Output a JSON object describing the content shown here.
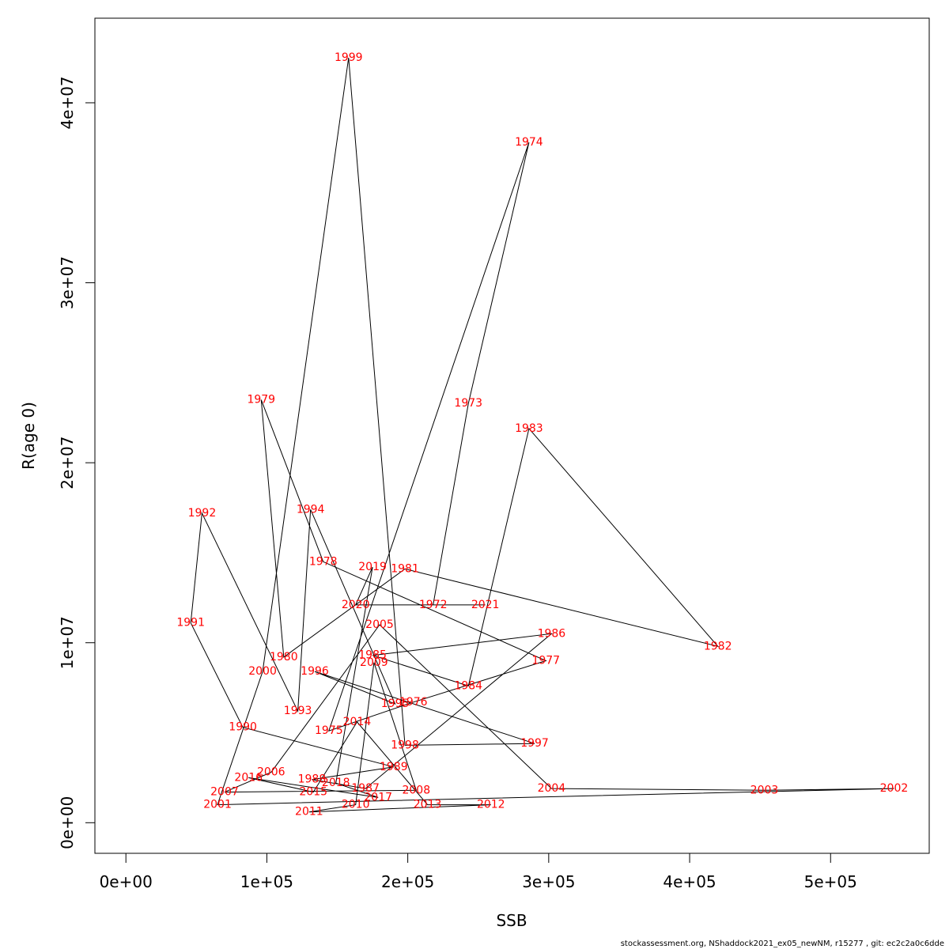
{
  "footer": "stockassessment.org, NShaddock2021_ex05_newNM, r15277 , git: ec2c2a0c6dde",
  "chart_data": {
    "type": "scatter",
    "connected": true,
    "xlabel": "SSB",
    "ylabel": "R(age 0)",
    "xlim": [
      -22000,
      570000
    ],
    "ylim": [
      -1700000,
      44700000
    ],
    "x_ticks": [
      0,
      100000,
      200000,
      300000,
      400000,
      500000
    ],
    "x_tick_labels": [
      "0e+00",
      "1e+05",
      "2e+05",
      "3e+05",
      "4e+05",
      "5e+05"
    ],
    "y_ticks": [
      0,
      10000000,
      20000000,
      30000000,
      40000000
    ],
    "y_tick_labels": [
      "0e+00",
      "1e+07",
      "2e+07",
      "3e+07",
      "4e+07"
    ],
    "label_color": "#ff0000",
    "line_color": "#000000",
    "points": [
      {
        "year": "1972",
        "ssb": 218000,
        "r": 12100000
      },
      {
        "year": "1973",
        "ssb": 243000,
        "r": 23300000
      },
      {
        "year": "1974",
        "ssb": 286000,
        "r": 37800000
      },
      {
        "year": "1975",
        "ssb": 144000,
        "r": 5100000
      },
      {
        "year": "1976",
        "ssb": 204000,
        "r": 6700000
      },
      {
        "year": "1977",
        "ssb": 298000,
        "r": 9000000
      },
      {
        "year": "1978",
        "ssb": 140000,
        "r": 14500000
      },
      {
        "year": "1979",
        "ssb": 96000,
        "r": 23500000
      },
      {
        "year": "1980",
        "ssb": 112000,
        "r": 9200000
      },
      {
        "year": "1981",
        "ssb": 198000,
        "r": 14100000
      },
      {
        "year": "1982",
        "ssb": 420000,
        "r": 9800000
      },
      {
        "year": "1983",
        "ssb": 286000,
        "r": 21900000
      },
      {
        "year": "1984",
        "ssb": 243000,
        "r": 7600000
      },
      {
        "year": "1985",
        "ssb": 175000,
        "r": 9300000
      },
      {
        "year": "1986",
        "ssb": 302000,
        "r": 10500000
      },
      {
        "year": "1987",
        "ssb": 170000,
        "r": 1900000
      },
      {
        "year": "1988",
        "ssb": 132000,
        "r": 2400000
      },
      {
        "year": "1989",
        "ssb": 190000,
        "r": 3100000
      },
      {
        "year": "1990",
        "ssb": 83000,
        "r": 5300000
      },
      {
        "year": "1991",
        "ssb": 46000,
        "r": 11100000
      },
      {
        "year": "1992",
        "ssb": 54000,
        "r": 17200000
      },
      {
        "year": "1993",
        "ssb": 122000,
        "r": 6200000
      },
      {
        "year": "1994",
        "ssb": 131000,
        "r": 17400000
      },
      {
        "year": "1995",
        "ssb": 191000,
        "r": 6600000
      },
      {
        "year": "1996",
        "ssb": 134000,
        "r": 8400000
      },
      {
        "year": "1997",
        "ssb": 290000,
        "r": 4400000
      },
      {
        "year": "1998",
        "ssb": 198000,
        "r": 4300000
      },
      {
        "year": "1999",
        "ssb": 158000,
        "r": 42500000
      },
      {
        "year": "2000",
        "ssb": 97000,
        "r": 8400000
      },
      {
        "year": "2001",
        "ssb": 65000,
        "r": 1000000
      },
      {
        "year": "2002",
        "ssb": 545000,
        "r": 1900000
      },
      {
        "year": "2003",
        "ssb": 453000,
        "r": 1800000
      },
      {
        "year": "2004",
        "ssb": 302000,
        "r": 1900000
      },
      {
        "year": "2005",
        "ssb": 180000,
        "r": 11000000
      },
      {
        "year": "2006",
        "ssb": 103000,
        "r": 2800000
      },
      {
        "year": "2007",
        "ssb": 70000,
        "r": 1700000
      },
      {
        "year": "2008",
        "ssb": 206000,
        "r": 1800000
      },
      {
        "year": "2009",
        "ssb": 176000,
        "r": 8900000
      },
      {
        "year": "2010",
        "ssb": 163000,
        "r": 1000000
      },
      {
        "year": "2011",
        "ssb": 130000,
        "r": 600000
      },
      {
        "year": "2012",
        "ssb": 259000,
        "r": 1000000
      },
      {
        "year": "2013",
        "ssb": 214000,
        "r": 1000000
      },
      {
        "year": "2014",
        "ssb": 164000,
        "r": 5600000
      },
      {
        "year": "2015",
        "ssb": 133000,
        "r": 1700000
      },
      {
        "year": "2016",
        "ssb": 87000,
        "r": 2500000
      },
      {
        "year": "2017",
        "ssb": 179000,
        "r": 1400000
      },
      {
        "year": "2018",
        "ssb": 149000,
        "r": 2200000
      },
      {
        "year": "2019",
        "ssb": 175000,
        "r": 14200000
      },
      {
        "year": "2020",
        "ssb": 163000,
        "r": 12100000
      },
      {
        "year": "2021",
        "ssb": 255000,
        "r": 12100000
      }
    ]
  }
}
